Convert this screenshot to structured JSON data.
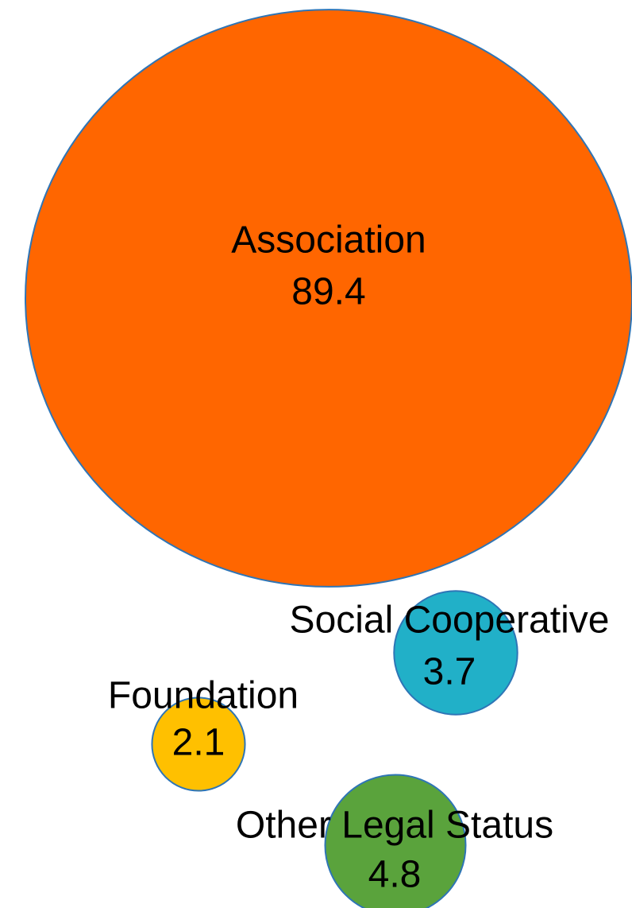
{
  "chart_data": {
    "type": "bubble",
    "title": "",
    "xlabel": "",
    "ylabel": "",
    "series": [
      {
        "name": "Association",
        "value": 89.4,
        "value_label": "89.4",
        "color": "#ff6600"
      },
      {
        "name": "Social Cooperative",
        "value": 3.7,
        "value_label": "3.7",
        "color": "#21b0c8"
      },
      {
        "name": "Foundation",
        "value": 2.1,
        "value_label": "2.1",
        "color": "#ffc000"
      },
      {
        "name": "Other Legal Status",
        "value": 4.8,
        "value_label": "4.8",
        "color": "#5aa33c"
      }
    ],
    "outline_color": "#2e75b6",
    "grid": false,
    "legend": "none"
  }
}
